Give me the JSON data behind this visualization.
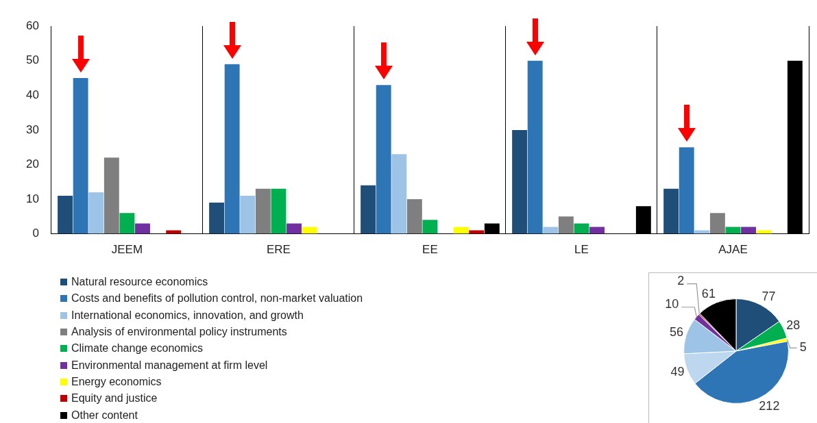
{
  "chart_data": [
    {
      "type": "bar",
      "categories": [
        "JEEM",
        "ERE",
        "EE",
        "LE",
        "AJAE"
      ],
      "ylim": [
        0,
        60
      ],
      "yticks": [
        0,
        10,
        20,
        30,
        40,
        50,
        60
      ],
      "grid": "x",
      "legend": "bottom left",
      "series": [
        {
          "name": "Natural resource economics",
          "color": "#1f4e79",
          "values": [
            11,
            9,
            14,
            30,
            13
          ]
        },
        {
          "name": "Costs and benefits of pollution control, non-market valuation",
          "color": "#2e75b6",
          "values": [
            45,
            49,
            43,
            50,
            25
          ]
        },
        {
          "name": "International economics, innovation, and growth",
          "color": "#9dc3e6",
          "values": [
            12,
            11,
            23,
            2,
            1
          ]
        },
        {
          "name": "Analysis of environmental policy instruments",
          "color": "#7f7f7f",
          "values": [
            22,
            13,
            10,
            5,
            6
          ]
        },
        {
          "name": "Climate change economics",
          "color": "#00b050",
          "values": [
            6,
            13,
            4,
            3,
            2
          ]
        },
        {
          "name": "Environmental management at firm level",
          "color": "#7030a0",
          "values": [
            3,
            3,
            0,
            2,
            2
          ]
        },
        {
          "name": "Energy economics",
          "color": "#ffff00",
          "values": [
            0,
            2,
            2,
            0,
            1
          ]
        },
        {
          "name": "Equity and justice",
          "color": "#c00000",
          "values": [
            1,
            0,
            1,
            0,
            0
          ]
        },
        {
          "name": "Other content",
          "color": "#000000",
          "values": [
            0,
            0,
            3,
            8,
            50
          ]
        }
      ]
    },
    {
      "type": "pie",
      "data_labels": true,
      "categories": [
        null,
        null,
        null,
        null,
        null,
        null,
        null,
        null,
        null
      ],
      "values": [
        77,
        28,
        5,
        212,
        49,
        56,
        10,
        2,
        61
      ],
      "colors": [
        "#1f4e79",
        "#00b050",
        "#ffff00",
        "#2e75b6",
        "#bdd7ee",
        "#9dc3e6",
        "#7030a0",
        "#c00000",
        "#000000"
      ]
    }
  ]
}
